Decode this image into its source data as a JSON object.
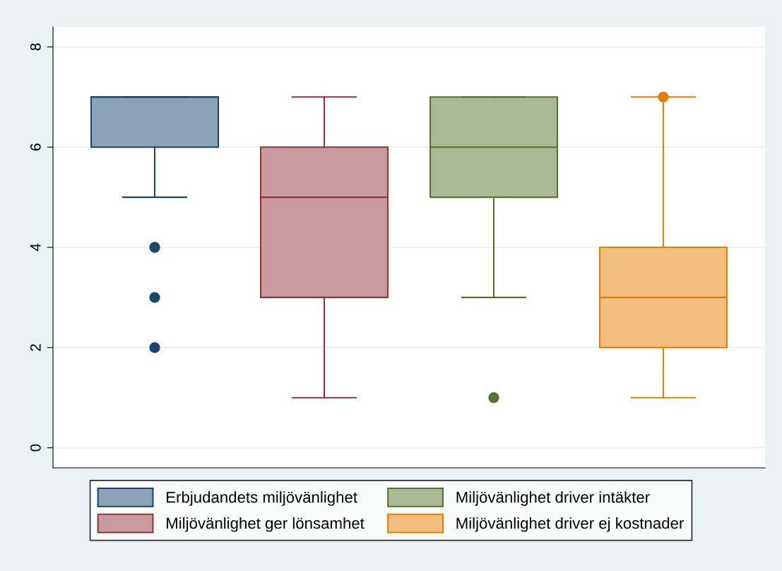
{
  "chart_data": {
    "type": "box",
    "categories": [
      null,
      null,
      null,
      null
    ],
    "series": [
      {
        "name": "Erbjudandets miljövänlighet",
        "color": "#1a476f",
        "boxes": [
          {
            "low": 5,
            "q1": 6,
            "median": 7,
            "q3": 7,
            "high": 7,
            "outliers": [
              4,
              3,
              2
            ]
          },
          null,
          null,
          null
        ]
      },
      {
        "name": "Miljövänlighet ger lönsamhet",
        "color": "#90353b",
        "boxes": [
          null,
          {
            "low": 1,
            "q1": 3,
            "median": 5,
            "q3": 6,
            "high": 7
          },
          null,
          null
        ]
      },
      {
        "name": "Miljövänlighet driver intäkter",
        "color": "#55752f",
        "boxes": [
          null,
          null,
          {
            "low": 3,
            "q1": 5,
            "median": 6,
            "q3": 7,
            "high": 7,
            "outliers": [
              1
            ]
          },
          null
        ]
      },
      {
        "name": "Miljövänlighet driver ej kostnader",
        "color": "#e37e00",
        "boxes": [
          null,
          null,
          null,
          {
            "low": 1,
            "q1": 2,
            "median": 3,
            "q3": 4,
            "high": 7,
            "outliers": [
              7
            ]
          }
        ]
      }
    ],
    "ylim": [
      -0.4,
      8.4
    ],
    "yticks": [
      0,
      2,
      4,
      6,
      8
    ],
    "grid": "y",
    "legend": "bottom",
    "tick_labels": "y"
  }
}
